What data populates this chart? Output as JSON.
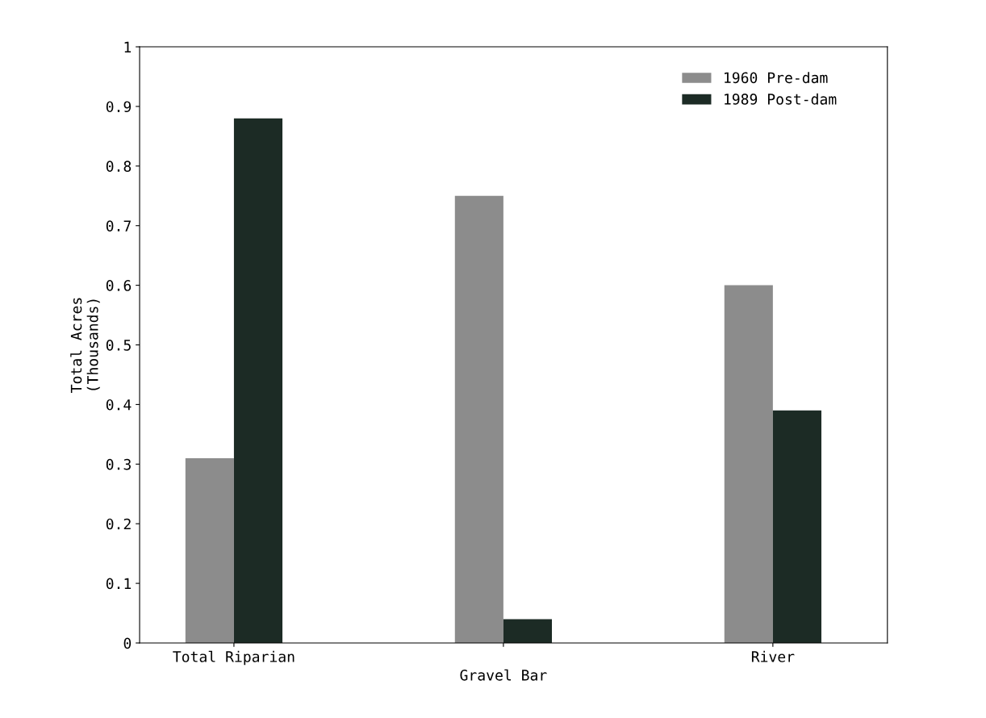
{
  "chart_data": {
    "type": "bar",
    "ylabel": "Total Acres\n(Thousands)",
    "categories": [
      "Total Riparian",
      "Gravel Bar",
      "River"
    ],
    "series": [
      {
        "name": "1960 Pre-dam",
        "color": "#8c8c8c",
        "values": [
          0.31,
          0.75,
          0.6
        ]
      },
      {
        "name": "1989 Post-dam",
        "color": "#1c2b25",
        "values": [
          0.88,
          0.04,
          0.39
        ]
      }
    ],
    "ylim": [
      0,
      1
    ],
    "yticks": [
      0,
      0.1,
      0.2,
      0.3,
      0.4,
      0.5,
      0.6,
      0.7,
      0.8,
      0.9,
      1
    ],
    "grid": false,
    "legend": "top right"
  }
}
